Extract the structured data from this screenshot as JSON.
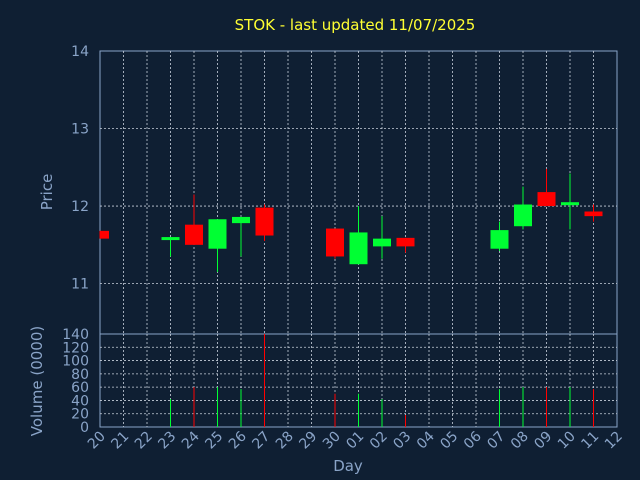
{
  "chart_data": {
    "type": "candlestick",
    "title": "STOK - last updated 11/07/2025",
    "xlabel": "Day",
    "price_ylabel": "Price",
    "volume_ylabel": "Volume (0000)",
    "price_ylim": [
      10.35,
      14
    ],
    "price_yticks": [
      "14",
      "13",
      "12",
      "11"
    ],
    "price_ytick_values": [
      14,
      13,
      12,
      11
    ],
    "volume_ylim": [
      0,
      140
    ],
    "volume_yticks": [
      "140",
      "120",
      "100",
      "80",
      "60",
      "40",
      "20",
      "0"
    ],
    "volume_ytick_values": [
      140,
      120,
      100,
      80,
      60,
      40,
      20,
      0
    ],
    "grid": true,
    "x_ticks": [
      "20",
      "21",
      "22",
      "23",
      "24",
      "25",
      "26",
      "27",
      "28",
      "29",
      "30",
      "01",
      "02",
      "03",
      "04",
      "05",
      "06",
      "07",
      "08",
      "09",
      "10",
      "11",
      "12"
    ],
    "candles": [
      {
        "day": "20",
        "slot": 0,
        "open": 11.68,
        "close": 11.58,
        "high": 11.68,
        "low": 11.58,
        "volume": 0
      },
      {
        "day": "23",
        "slot": 3,
        "open": 11.57,
        "close": 11.6,
        "high": 11.6,
        "low": 11.35,
        "volume": 42
      },
      {
        "day": "24",
        "slot": 4,
        "open": 11.76,
        "close": 11.5,
        "high": 12.15,
        "low": 11.5,
        "volume": 60
      },
      {
        "day": "25",
        "slot": 5,
        "open": 11.45,
        "close": 11.83,
        "high": 11.83,
        "low": 11.15,
        "volume": 60
      },
      {
        "day": "26",
        "slot": 6,
        "open": 11.78,
        "close": 11.86,
        "high": 11.86,
        "low": 11.35,
        "volume": 57
      },
      {
        "day": "27",
        "slot": 7,
        "open": 11.98,
        "close": 11.62,
        "high": 12.02,
        "low": 11.55,
        "volume": 140
      },
      {
        "day": "30",
        "slot": 10,
        "open": 11.71,
        "close": 11.35,
        "high": 11.71,
        "low": 11.32,
        "volume": 50
      },
      {
        "day": "01",
        "slot": 11,
        "open": 11.25,
        "close": 11.66,
        "high": 12.0,
        "low": 11.25,
        "volume": 50
      },
      {
        "day": "02",
        "slot": 12,
        "open": 11.48,
        "close": 11.58,
        "high": 11.87,
        "low": 11.32,
        "volume": 42
      },
      {
        "day": "03",
        "slot": 13,
        "open": 11.59,
        "close": 11.48,
        "high": 11.59,
        "low": 11.4,
        "volume": 18
      },
      {
        "day": "07",
        "slot": 17,
        "open": 11.45,
        "close": 11.69,
        "high": 11.8,
        "low": 11.42,
        "volume": 57
      },
      {
        "day": "08",
        "slot": 18,
        "open": 11.74,
        "close": 12.02,
        "high": 12.25,
        "low": 11.7,
        "volume": 60
      },
      {
        "day": "09",
        "slot": 19,
        "open": 12.18,
        "close": 12.0,
        "high": 12.48,
        "low": 12.0,
        "volume": 60
      },
      {
        "day": "10",
        "slot": 20,
        "open": 12.02,
        "close": 12.05,
        "high": 12.42,
        "low": 11.7,
        "volume": 60
      },
      {
        "day": "11",
        "slot": 21,
        "open": 11.93,
        "close": 11.87,
        "high": 12.02,
        "low": 11.8,
        "volume": 57
      }
    ],
    "up_color": "#00ff33",
    "down_color": "#ff0000",
    "title_color": "#ffff33",
    "axis_color": "#8aa4c8",
    "background": "#0f1f33"
  }
}
